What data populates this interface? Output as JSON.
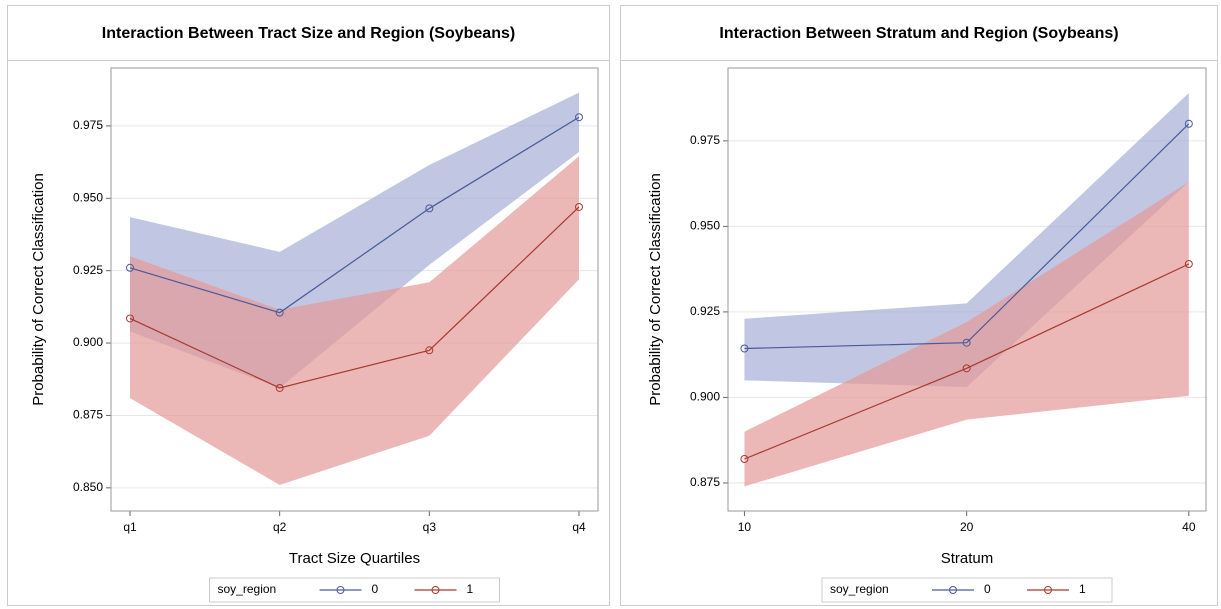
{
  "chart_data": [
    {
      "type": "line",
      "title": "Interaction Between Tract Size and Region (Soybeans)",
      "x_label": "Tract Size Quartiles",
      "y_label": "Probability of Correct Classification",
      "categories": [
        "q1",
        "q2",
        "q3",
        "q4"
      ],
      "legend_title": "soy_region",
      "series": [
        {
          "name": "0",
          "color": "#4a5a9a",
          "band_color": "#a7aed6",
          "values": [
            0.926,
            0.9105,
            0.9465,
            0.978
          ],
          "upper": [
            0.9435,
            0.9315,
            0.9615,
            0.9865
          ],
          "lower": [
            0.904,
            0.8845,
            0.927,
            0.966
          ]
        },
        {
          "name": "1",
          "color": "#a8392f",
          "band_color": "#e49a99",
          "values": [
            0.9085,
            0.8845,
            0.8975,
            0.947
          ],
          "upper": [
            0.93,
            0.9115,
            0.921,
            0.9645
          ],
          "lower": [
            0.881,
            0.851,
            0.868,
            0.922
          ]
        }
      ],
      "ylim": [
        0.842,
        0.995
      ],
      "yticks": [
        {
          "value": 0.85,
          "label": "0.850"
        },
        0.875,
        {
          "value": 0.9,
          "label": "0.900"
        },
        0.925,
        {
          "value": 0.95,
          "label": "0.950"
        },
        0.975
      ],
      "grid": true
    },
    {
      "type": "line",
      "title": "Interaction Between Stratum and Region (Soybeans)",
      "x_label": "Stratum",
      "y_label": "Probability of Correct Classification",
      "x": [
        10,
        20,
        40
      ],
      "xlim": [
        9.5,
        42.2
      ],
      "xticks": [
        10,
        20,
        40
      ],
      "xscale": "log",
      "legend_title": "soy_region",
      "series": [
        {
          "name": "0",
          "color": "#4a5a9a",
          "band_color": "#a7aed6",
          "values": [
            0.9143,
            0.916,
            0.98
          ],
          "upper": [
            0.923,
            0.9275,
            0.989
          ],
          "lower": [
            0.905,
            0.903,
            0.963
          ]
        },
        {
          "name": "1",
          "color": "#a8392f",
          "band_color": "#e49a99",
          "values": [
            0.882,
            0.9085,
            0.939
          ],
          "upper": [
            0.89,
            0.922,
            0.963
          ],
          "lower": [
            0.874,
            0.8935,
            0.9005
          ]
        }
      ],
      "ylim": [
        0.8668,
        0.9963
      ],
      "yticks": [
        0.875,
        {
          "value": 0.9,
          "label": "0.900"
        },
        0.925,
        {
          "value": 0.95,
          "label": "0.950"
        },
        0.975
      ],
      "grid": true
    }
  ]
}
